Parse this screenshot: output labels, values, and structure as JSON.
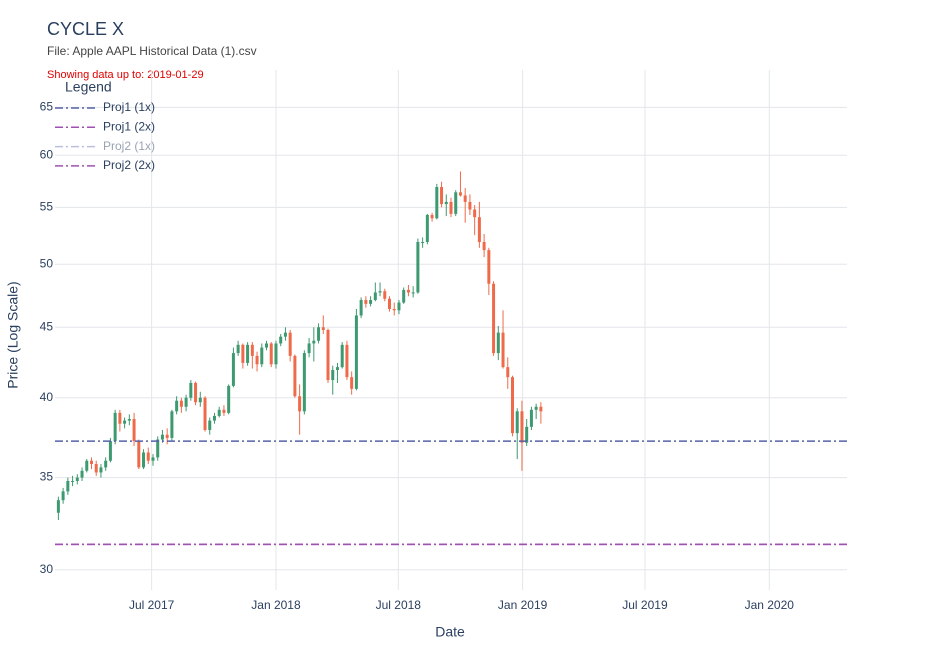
{
  "chart_data": {
    "type": "candlestick",
    "title": "CYCLE X",
    "subtitle": "File: Apple AAPL Historical Data (1).csv",
    "note": "Showing data up to: 2019-01-29",
    "legend_title": "Legend",
    "x_label": "Date",
    "y_label": "Price (Log Scale)",
    "log_y": true,
    "grid": true,
    "legend_position": "top-left",
    "increasing_color": "#3d9970",
    "decreasing_color": "#ef6a4a",
    "xlim": [
      "2017-02-08",
      "2020-04-25"
    ],
    "xticks": [
      {
        "value": "2017-07-01",
        "label": "Jul 2017"
      },
      {
        "value": "2018-01-01",
        "label": "Jan 2018"
      },
      {
        "value": "2018-07-01",
        "label": "Jul 2018"
      },
      {
        "value": "2019-01-01",
        "label": "Jan 2019"
      },
      {
        "value": "2019-07-01",
        "label": "Jul 2019"
      },
      {
        "value": "2020-01-01",
        "label": "Jan 2020"
      }
    ],
    "ylim": [
      29,
      69.2
    ],
    "yticks": [
      30,
      35,
      40,
      45,
      50,
      55,
      60,
      65
    ],
    "lines": [
      {
        "name": "Proj1 (1x)",
        "color": "#5560a8",
        "value": 37.2
      },
      {
        "name": "Proj1 (2x)",
        "color": "#a050b0",
        "value": 31.3
      },
      {
        "name": "Proj2 (1x)",
        "color": "#5560a8",
        "visible": "legendonly"
      },
      {
        "name": "Proj2 (2x)",
        "color": "#a050b0",
        "value": 31.3
      }
    ],
    "x": [
      "2017-02-13",
      "2017-02-20",
      "2017-02-27",
      "2017-03-06",
      "2017-03-13",
      "2017-03-20",
      "2017-03-27",
      "2017-04-03",
      "2017-04-10",
      "2017-04-17",
      "2017-04-24",
      "2017-05-01",
      "2017-05-08",
      "2017-05-15",
      "2017-05-22",
      "2017-05-29",
      "2017-06-05",
      "2017-06-12",
      "2017-06-19",
      "2017-06-26",
      "2017-07-03",
      "2017-07-10",
      "2017-07-17",
      "2017-07-24",
      "2017-07-31",
      "2017-08-07",
      "2017-08-14",
      "2017-08-21",
      "2017-08-28",
      "2017-09-04",
      "2017-09-11",
      "2017-09-18",
      "2017-09-25",
      "2017-10-02",
      "2017-10-09",
      "2017-10-16",
      "2017-10-23",
      "2017-10-30",
      "2017-11-06",
      "2017-11-13",
      "2017-11-20",
      "2017-11-27",
      "2017-12-04",
      "2017-12-11",
      "2017-12-18",
      "2017-12-25",
      "2018-01-01",
      "2018-01-08",
      "2018-01-15",
      "2018-01-22",
      "2018-01-29",
      "2018-02-05",
      "2018-02-12",
      "2018-02-19",
      "2018-02-26",
      "2018-03-05",
      "2018-03-12",
      "2018-03-19",
      "2018-03-26",
      "2018-04-02",
      "2018-04-09",
      "2018-04-16",
      "2018-04-23",
      "2018-04-30",
      "2018-05-07",
      "2018-05-14",
      "2018-05-21",
      "2018-05-28",
      "2018-06-04",
      "2018-06-11",
      "2018-06-18",
      "2018-06-25",
      "2018-07-02",
      "2018-07-09",
      "2018-07-16",
      "2018-07-23",
      "2018-07-30",
      "2018-08-06",
      "2018-08-13",
      "2018-08-20",
      "2018-08-27",
      "2018-09-03",
      "2018-09-10",
      "2018-09-17",
      "2018-09-24",
      "2018-10-01",
      "2018-10-08",
      "2018-10-15",
      "2018-10-22",
      "2018-10-29",
      "2018-11-05",
      "2018-11-12",
      "2018-11-19",
      "2018-11-26",
      "2018-12-03",
      "2018-12-10",
      "2018-12-17",
      "2018-12-24",
      "2018-12-31",
      "2019-01-07",
      "2019-01-14",
      "2019-01-21",
      "2019-01-28"
    ],
    "open": [
      33.0,
      33.7,
      34.2,
      34.8,
      34.8,
      35.0,
      35.4,
      36.0,
      35.8,
      35.3,
      35.6,
      36.0,
      37.2,
      39.0,
      38.3,
      38.5,
      38.6,
      37.2,
      35.6,
      36.5,
      36.0,
      36.2,
      37.3,
      37.6,
      37.4,
      39.1,
      39.8,
      39.4,
      40.0,
      41.0,
      39.7,
      40.0,
      37.9,
      38.5,
      38.8,
      39.2,
      39.0,
      40.8,
      43.1,
      43.7,
      42.4,
      43.7,
      42.9,
      42.3,
      43.5,
      43.8,
      42.3,
      43.8,
      44.3,
      44.6,
      42.9,
      40.1,
      39.1,
      43.1,
      43.8,
      44.0,
      45.0,
      44.8,
      41.2,
      41.9,
      42.1,
      43.7,
      41.4,
      40.6,
      45.9,
      47.1,
      46.8,
      47.1,
      47.7,
      47.8,
      47.2,
      46.4,
      46.3,
      46.9,
      47.9,
      47.7,
      47.7,
      51.9,
      51.9,
      54.3,
      54.0,
      56.9,
      55.3,
      55.5,
      54.4,
      56.4,
      56.1,
      55.5,
      54.8,
      54.1,
      51.9,
      51.2,
      48.4,
      43.1,
      44.6,
      42.1,
      41.4,
      37.7,
      39.1,
      37.1,
      38.1,
      39.2,
      39.4
    ],
    "high": [
      33.9,
      34.4,
      35.0,
      35.1,
      35.2,
      35.6,
      36.1,
      36.2,
      36.0,
      35.8,
      36.2,
      37.4,
      39.2,
      39.2,
      38.7,
      38.9,
      39.0,
      37.3,
      36.7,
      36.8,
      36.4,
      37.5,
      37.9,
      38.0,
      39.2,
      40.1,
      40.0,
      40.2,
      41.2,
      41.1,
      40.4,
      40.1,
      38.7,
      39.0,
      39.4,
      39.5,
      40.9,
      43.5,
      44.0,
      43.8,
      43.9,
      43.9,
      43.2,
      43.8,
      44.0,
      43.9,
      44.0,
      44.5,
      45.0,
      44.8,
      43.0,
      40.9,
      43.3,
      44.2,
      45.0,
      45.3,
      45.9,
      44.9,
      42.2,
      42.4,
      43.9,
      44.0,
      41.8,
      46.4,
      47.3,
      47.4,
      47.4,
      48.5,
      48.5,
      48.0,
      47.4,
      46.9,
      47.1,
      48.1,
      48.3,
      48.2,
      52.2,
      52.3,
      54.4,
      54.5,
      57.2,
      57.4,
      56.2,
      55.9,
      56.6,
      58.4,
      56.8,
      56.2,
      55.2,
      55.5,
      52.6,
      51.4,
      48.6,
      45.1,
      46.3,
      42.8,
      41.5,
      39.3,
      39.8,
      38.6,
      39.4,
      39.6,
      39.7
    ],
    "low": [
      32.6,
      33.5,
      34.0,
      34.5,
      34.6,
      34.8,
      35.3,
      35.5,
      35.1,
      35.0,
      35.4,
      35.9,
      37.0,
      37.8,
      38.0,
      38.2,
      36.9,
      35.5,
      35.5,
      35.8,
      35.7,
      36.0,
      37.1,
      37.0,
      37.2,
      38.9,
      39.0,
      39.1,
      39.8,
      39.5,
      39.4,
      37.8,
      37.6,
      38.3,
      38.7,
      38.8,
      38.9,
      40.7,
      42.9,
      42.0,
      42.2,
      42.0,
      41.8,
      42.1,
      43.3,
      42.1,
      42.0,
      43.6,
      44.0,
      42.5,
      40.0,
      37.6,
      38.9,
      42.8,
      42.5,
      43.8,
      44.5,
      41.0,
      40.2,
      41.0,
      42.0,
      41.2,
      40.2,
      40.5,
      45.7,
      46.5,
      46.6,
      47.0,
      47.4,
      47.0,
      46.2,
      45.9,
      46.0,
      46.8,
      47.4,
      47.3,
      47.6,
      51.4,
      51.7,
      53.7,
      53.9,
      55.0,
      54.2,
      54.1,
      54.2,
      56.0,
      53.6,
      54.3,
      52.5,
      51.4,
      50.6,
      47.5,
      42.9,
      42.6,
      42.0,
      40.6,
      37.5,
      36.1,
      35.4,
      36.9,
      37.9,
      38.6,
      38.3
    ],
    "close": [
      33.7,
      34.2,
      34.8,
      34.8,
      35.0,
      35.4,
      36.0,
      35.8,
      35.3,
      35.6,
      36.0,
      37.2,
      39.0,
      38.3,
      38.5,
      38.6,
      37.2,
      35.6,
      36.5,
      36.0,
      36.2,
      37.3,
      37.6,
      37.4,
      39.1,
      39.8,
      39.4,
      40.0,
      41.0,
      39.7,
      40.0,
      37.9,
      38.5,
      38.8,
      39.2,
      39.0,
      40.8,
      43.1,
      43.7,
      42.4,
      43.7,
      42.9,
      42.3,
      43.5,
      43.8,
      42.3,
      43.8,
      44.3,
      44.6,
      42.9,
      40.1,
      39.1,
      43.1,
      43.8,
      44.0,
      45.0,
      44.8,
      41.2,
      41.9,
      42.1,
      43.7,
      41.4,
      40.6,
      45.9,
      47.1,
      46.8,
      47.1,
      47.7,
      47.8,
      47.2,
      46.4,
      46.3,
      46.9,
      47.9,
      47.7,
      47.7,
      51.9,
      51.9,
      54.3,
      54.0,
      56.9,
      55.3,
      55.5,
      54.4,
      56.4,
      56.1,
      55.5,
      54.8,
      54.1,
      51.9,
      51.2,
      48.4,
      43.1,
      44.6,
      42.1,
      41.4,
      37.7,
      39.1,
      37.1,
      38.1,
      39.2,
      39.4,
      39.1
    ]
  }
}
